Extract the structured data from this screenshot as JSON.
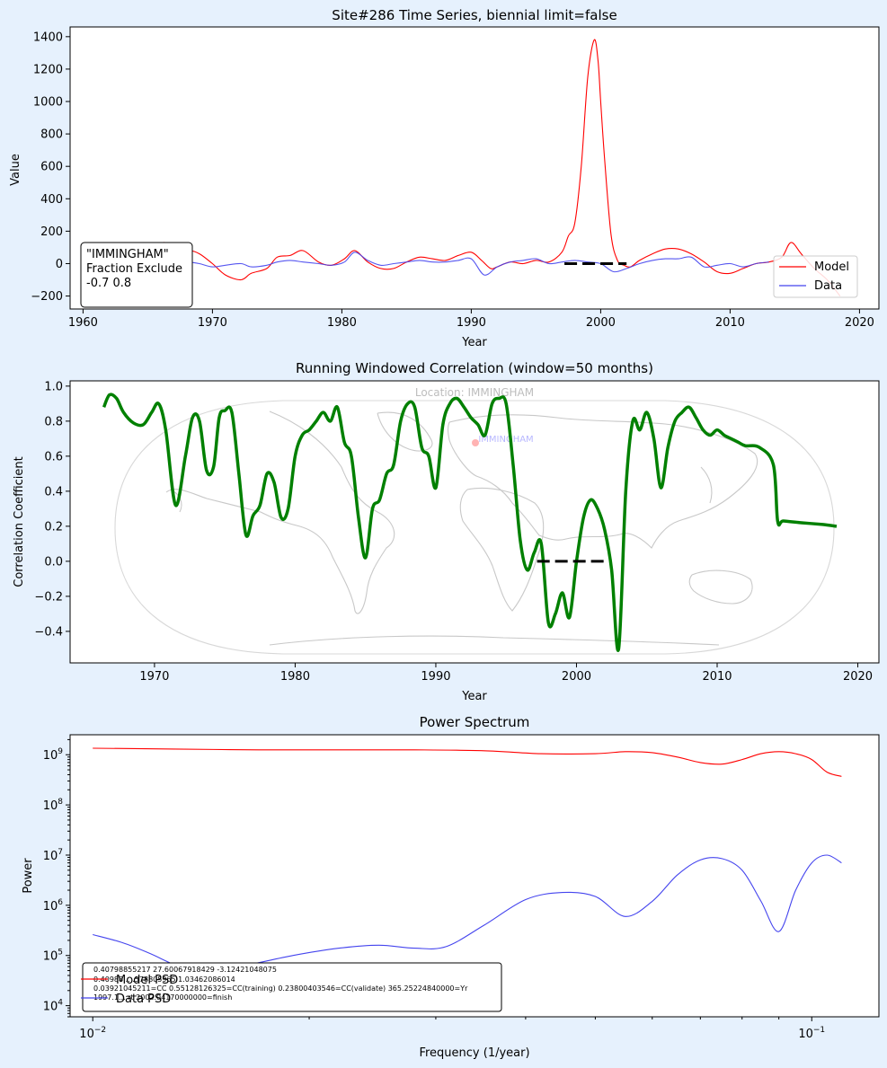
{
  "chart_data": [
    {
      "type": "line",
      "title": "Site#286 Time Series, biennial limit=false",
      "xlabel": "Year",
      "ylabel": "Value",
      "xlim": [
        1959,
        2021.5
      ],
      "ylim": [
        -280,
        1460
      ],
      "xticks": [
        1960,
        1970,
        1980,
        1990,
        2000,
        2010,
        2020
      ],
      "yticks": [
        -200,
        0,
        200,
        400,
        600,
        800,
        1000,
        1200,
        1400
      ],
      "legend": {
        "placement": "lower-right",
        "entries": [
          "Model",
          "Data"
        ]
      },
      "annotation": {
        "lines": [
          "\"IMMINGHAM\"",
          "Fraction Exclude",
          "-0.7 0.8"
        ]
      },
      "validation_interval": [
        1997.2,
        2002.0
      ],
      "series": [
        {
          "name": "Model",
          "color": "#ff0000",
          "x": [
            1961.2,
            1962.5,
            1963.8,
            1965.0,
            1966.2,
            1967.2,
            1968.2,
            1969.0,
            1970.0,
            1971.0,
            1972.2,
            1973.0,
            1974.2,
            1975.0,
            1976.0,
            1977.0,
            1978.2,
            1979.2,
            1980.2,
            1981.0,
            1982.0,
            1983.0,
            1984.0,
            1985.0,
            1986.0,
            1987.0,
            1988.0,
            1989.0,
            1990.0,
            1990.8,
            1991.5,
            1992.0,
            1993.0,
            1994.0,
            1995.0,
            1996.0,
            1997.0,
            1997.5,
            1998.0,
            1998.5,
            1999.0,
            1999.5,
            1999.8,
            2000.0,
            2000.3,
            2000.8,
            2001.3,
            2001.8,
            2002.3,
            2003.0,
            2004.0,
            2005.0,
            2006.0,
            2007.0,
            2008.0,
            2009.0,
            2010.0,
            2011.0,
            2012.0,
            2013.0,
            2014.0,
            2014.7,
            2015.5,
            2016.5,
            2017.5,
            2018.5
          ],
          "y": [
            -30,
            -10,
            -30,
            20,
            130,
            60,
            80,
            60,
            0,
            -70,
            -100,
            -60,
            -30,
            40,
            50,
            80,
            10,
            -10,
            30,
            80,
            10,
            -30,
            -30,
            10,
            40,
            30,
            20,
            50,
            70,
            20,
            -30,
            -20,
            10,
            0,
            20,
            10,
            70,
            170,
            250,
            600,
            1150,
            1380,
            1250,
            1000,
            650,
            180,
            20,
            -10,
            -20,
            20,
            60,
            90,
            90,
            60,
            10,
            -50,
            -60,
            -30,
            0,
            10,
            40,
            130,
            60,
            -30,
            -100,
            -200
          ]
        },
        {
          "name": "Data",
          "color": "#4444ee",
          "x": [
            1961.2,
            1962.5,
            1963.8,
            1965.0,
            1966.2,
            1967.2,
            1968.2,
            1969.0,
            1970.0,
            1971.0,
            1972.2,
            1973.0,
            1974.2,
            1975.0,
            1976.0,
            1977.0,
            1978.2,
            1979.2,
            1980.2,
            1981.0,
            1982.0,
            1983.0,
            1984.0,
            1985.0,
            1986.0,
            1987.0,
            1988.0,
            1989.0,
            1990.0,
            1991.0,
            1992.0,
            1993.0,
            1994.0,
            1995.0,
            1996.0,
            1997.0,
            1998.0,
            1999.0,
            2000.0,
            2001.0,
            2002.0,
            2003.0,
            2004.0,
            2005.0,
            2006.0,
            2007.0,
            2008.0,
            2009.0,
            2010.0,
            2011.0,
            2012.0,
            2013.0
          ],
          "y": [
            -30,
            -10,
            -30,
            0,
            10,
            20,
            10,
            0,
            -20,
            -10,
            0,
            -20,
            -10,
            10,
            20,
            10,
            0,
            -10,
            10,
            70,
            20,
            -10,
            0,
            10,
            20,
            10,
            10,
            20,
            30,
            -70,
            -20,
            10,
            20,
            30,
            0,
            10,
            20,
            10,
            0,
            -50,
            -30,
            0,
            20,
            30,
            30,
            40,
            -20,
            -10,
            0,
            -20,
            0,
            10
          ]
        }
      ]
    },
    {
      "type": "line",
      "title": "Running Windowed Correlation (window=50 months)",
      "xlabel": "Year",
      "ylabel": "Correlation Coefficient",
      "xlim": [
        1964,
        2021.5
      ],
      "ylim": [
        -0.58,
        1.03
      ],
      "xticks": [
        1970,
        1980,
        1990,
        2000,
        2010,
        2020
      ],
      "yticks": [
        -0.4,
        -0.2,
        0.0,
        0.2,
        0.4,
        0.6,
        0.8,
        1.0
      ],
      "background_map": {
        "location_label": "Location: IMMINGHAM",
        "marker_label": "IMMINGHAM"
      },
      "validation_interval": [
        1997.2,
        2002.0
      ],
      "series": [
        {
          "name": "",
          "color": "#008000",
          "x": [
            1966.4,
            1966.8,
            1967.3,
            1967.8,
            1968.5,
            1969.2,
            1969.8,
            1970.3,
            1970.8,
            1971.5,
            1972.2,
            1972.7,
            1973.2,
            1973.7,
            1974.2,
            1974.6,
            1975.0,
            1975.5,
            1976.0,
            1976.5,
            1977.0,
            1977.5,
            1978.0,
            1978.5,
            1979.0,
            1979.5,
            1980.0,
            1980.5,
            1981.0,
            1981.5,
            1982.0,
            1982.5,
            1983.0,
            1983.5,
            1984.0,
            1984.5,
            1985.0,
            1985.5,
            1986.0,
            1986.5,
            1987.0,
            1987.5,
            1988.0,
            1988.5,
            1989.0,
            1989.5,
            1990.0,
            1990.5,
            1991.0,
            1991.5,
            1992.0,
            1992.5,
            1993.0,
            1993.5,
            1994.0,
            1994.5,
            1995.0,
            1995.5,
            1996.0,
            1996.5,
            1997.0,
            1997.5,
            1998.0,
            1998.5,
            1999.0,
            1999.5,
            2000.0,
            2000.5,
            2001.0,
            2001.5,
            2002.0,
            2002.5,
            2003.0,
            2003.5,
            2004.0,
            2004.5,
            2005.0,
            2005.5,
            2006.0,
            2006.5,
            2007.0,
            2007.5,
            2008.0,
            2008.5,
            2009.0,
            2009.5,
            2010.0,
            2010.5,
            2011.0,
            2011.5,
            2012.0,
            2013.0,
            2014.0,
            2014.3,
            2014.7,
            2016.0,
            2017.5,
            2018.5
          ],
          "y": [
            0.88,
            0.95,
            0.93,
            0.85,
            0.79,
            0.78,
            0.85,
            0.9,
            0.75,
            0.32,
            0.6,
            0.82,
            0.8,
            0.52,
            0.54,
            0.82,
            0.86,
            0.85,
            0.5,
            0.15,
            0.26,
            0.32,
            0.5,
            0.45,
            0.25,
            0.3,
            0.6,
            0.72,
            0.75,
            0.8,
            0.85,
            0.8,
            0.88,
            0.68,
            0.6,
            0.25,
            0.02,
            0.3,
            0.35,
            0.5,
            0.55,
            0.8,
            0.9,
            0.88,
            0.65,
            0.6,
            0.42,
            0.78,
            0.9,
            0.93,
            0.88,
            0.82,
            0.78,
            0.72,
            0.9,
            0.93,
            0.9,
            0.55,
            0.12,
            -0.05,
            0.05,
            0.1,
            -0.35,
            -0.3,
            -0.18,
            -0.32,
            0.0,
            0.25,
            0.35,
            0.3,
            0.18,
            -0.05,
            -0.5,
            0.4,
            0.8,
            0.75,
            0.85,
            0.7,
            0.42,
            0.65,
            0.8,
            0.85,
            0.88,
            0.82,
            0.75,
            0.72,
            0.75,
            0.72,
            0.7,
            0.68,
            0.66,
            0.65,
            0.55,
            0.23,
            0.23,
            0.22,
            0.21,
            0.2
          ]
        }
      ]
    },
    {
      "type": "line",
      "title": "Power Spectrum",
      "xlabel": "Frequency (1/year)",
      "ylabel": "Power",
      "xscale": "log",
      "yscale": "log",
      "xlim": [
        0.0093,
        0.124
      ],
      "ylim": [
        6000,
        2500000000
      ],
      "xticks": [
        0.01,
        0.1
      ],
      "yticks": [
        10000,
        100000,
        1000000,
        10000000,
        100000000,
        1000000000
      ],
      "legend": {
        "placement": "lower-left",
        "entries": [
          "Model PSD",
          "Data PSD"
        ]
      },
      "stats_text": [
        "0.40798855217    27.60067918429     -3.12421048075",
        "0.40988...        .578805965      1.03462086014",
        "0.03921045211=CC    0.55128126325=CC(training)    0.23800403546=CC(validate)  365.25224840000=Yr",
        "1997.1...            rt 2002.04170000000=finish"
      ],
      "series": [
        {
          "name": "Model PSD",
          "color": "#ff0000",
          "x": [
            0.01,
            0.013,
            0.017,
            0.022,
            0.028,
            0.035,
            0.042,
            0.05,
            0.055,
            0.06,
            0.065,
            0.07,
            0.075,
            0.08,
            0.085,
            0.09,
            0.095,
            0.1,
            0.105,
            0.11
          ],
          "y": [
            1350000000,
            1300000000,
            1250000000,
            1250000000,
            1250000000,
            1200000000,
            1050000000,
            1050000000,
            1150000000,
            1100000000,
            900000000,
            700000000,
            650000000,
            800000000,
            1050000000,
            1150000000,
            1050000000,
            800000000,
            450000000,
            370000000
          ]
        },
        {
          "name": "Data PSD",
          "color": "#4444ee",
          "x": [
            0.01,
            0.011,
            0.012,
            0.013,
            0.014,
            0.016,
            0.019,
            0.022,
            0.025,
            0.028,
            0.031,
            0.035,
            0.04,
            0.045,
            0.05,
            0.055,
            0.06,
            0.065,
            0.07,
            0.075,
            0.08,
            0.085,
            0.09,
            0.095,
            0.1,
            0.105,
            0.11
          ],
          "y": [
            260000,
            180000,
            110000,
            65000,
            45000,
            60000,
            100000,
            140000,
            160000,
            140000,
            150000,
            400000,
            1300000,
            1800000,
            1500000,
            600000,
            1200000,
            4000000,
            8000000,
            8500000,
            5000000,
            1200000,
            300000,
            2000000,
            7000000,
            10000000,
            7000000
          ]
        }
      ]
    }
  ]
}
